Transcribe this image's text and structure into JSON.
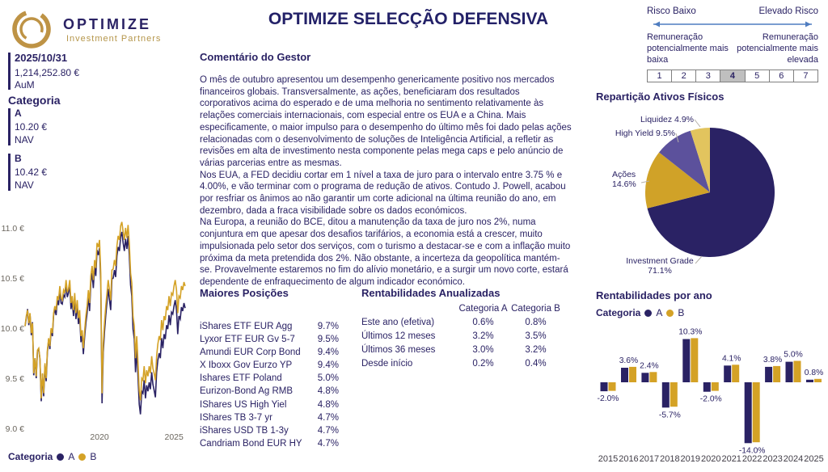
{
  "header": {
    "logo_text": "OPTIMIZE",
    "logo_subtext": "Investment Partners",
    "title": "OPTIMIZE SELECÇÃO DEFENSIVA"
  },
  "kpis": {
    "date": "2025/10/31",
    "aum_value": "1,214,252.80 €",
    "aum_label": "AuM",
    "category_label": "Categoria",
    "categories": [
      {
        "name": "A",
        "nav": "10.20 €",
        "nav_label": "NAV"
      },
      {
        "name": "B",
        "nav": "10.42 €",
        "nav_label": "NAV"
      }
    ]
  },
  "legend": {
    "title": "Categoria",
    "a": "A",
    "b": "B"
  },
  "commentary": {
    "heading": "Comentário do Gestor",
    "paragraphs": [
      "O mês de outubro apresentou um desempenho genericamente positivo nos mercados financeiros globais. Transversalmente, as ações, beneficiaram dos resultados corporativos acima do esperado e de uma melhoria no sentimento relativamente às relações comerciais internacionais, com especial entre os EUA e a China. Mais especificamente, o maior impulso para o desempenho do último mês foi dado pelas ações relacionadas com o desenvolvimento de soluções de Inteligência Artificial, a refletir as revisões em alta de investimento nesta componente pelas mega caps e pelo anúncio de várias parcerias entre as mesmas.",
      "Nos EUA, a FED decidiu cortar em 1 nível a taxa de juro para o intervalo entre 3.75 % e 4.00%, e vão terminar com o programa de redução de ativos. Contudo J. Powell, acabou por resfriar os ânimos ao não garantir um corte adicional na última reunião do ano, em dezembro, dada a fraca visibilidade sobre os dados económicos.",
      "Na Europa, a reunião do BCE, ditou a manutenção da taxa de juro nos 2%, numa conjuntura em que apesar dos desafios tarifários, a economia está a crescer, muito impulsionada pelo setor dos serviços, com o turismo a destacar-se e com a inflação muito próxima da meta pretendida dos 2%. Não obstante, a incerteza da geopolítica mantém-se. Provavelmente estaremos no fim do alívio monetário, e a surgir um novo corte, estará dependente de enfraquecimento de algum indicador económico."
    ]
  },
  "holdings": {
    "heading": "Maiores Posições",
    "rows": [
      {
        "name": "iShares ETF EUR Agg",
        "pct": "9.7%"
      },
      {
        "name": "Lyxor ETF EUR Gv 5-7",
        "pct": "9.5%"
      },
      {
        "name": "Amundi EUR Corp Bond",
        "pct": "9.4%"
      },
      {
        "name": "X Iboxx Gov Eurzo YP",
        "pct": "9.4%"
      },
      {
        "name": "Ishares ETF Poland",
        "pct": "5.0%"
      },
      {
        "name": "Eurizon-Bond Ag RMB",
        "pct": "4.8%"
      },
      {
        "name": "IShares US High Yiel",
        "pct": "4.8%"
      },
      {
        "name": "IShares TB 3-7 yr",
        "pct": "4.7%"
      },
      {
        "name": "iShares USD TB 1-3y",
        "pct": "4.7%"
      },
      {
        "name": "Candriam Bond EUR HY",
        "pct": "4.7%"
      }
    ]
  },
  "annualized": {
    "heading": "Rentabilidades Anualizadas",
    "col_a": "Categoria A",
    "col_b": "Categoria B",
    "rows": [
      {
        "label": "Este ano (efetiva)",
        "a": "0.6%",
        "b": "0.8%"
      },
      {
        "label": "Últimos 12 meses",
        "a": "3.2%",
        "b": "3.5%"
      },
      {
        "label": "Últimos 36 meses",
        "a": "3.0%",
        "b": "3.2%"
      },
      {
        "label": "Desde início",
        "a": "0.2%",
        "b": "0.4%"
      }
    ]
  },
  "risk": {
    "low_label": "Risco Baixo",
    "high_label": "Elevado Risco",
    "left_note": "Remuneração potencialmente mais baixa",
    "right_note": "Remuneração potencialmente mais elevada",
    "levels": [
      "1",
      "2",
      "3",
      "4",
      "5",
      "6",
      "7"
    ],
    "selected": "4"
  },
  "colors": {
    "navy": "#2a2264",
    "gold": "#d4a226",
    "purple": "#5c519c",
    "light_gold": "#e2c45e",
    "arrow_blue": "#4f7dc0",
    "leader_gray": "#b5b0a8"
  },
  "chart_data": [
    {
      "type": "line",
      "title": "NAV evolution",
      "x_start": "2015-01",
      "x_end": "2025-10",
      "ylabel": "€",
      "ylim": [
        9.0,
        11.1
      ],
      "y_ticks": [
        {
          "v": 11.0,
          "label": "11.0 €"
        },
        {
          "v": 10.5,
          "label": "10.5 €"
        },
        {
          "v": 10.0,
          "label": "10.0 €"
        },
        {
          "v": 9.5,
          "label": "9.5 €"
        },
        {
          "v": 9.0,
          "label": "9.0 €"
        }
      ],
      "x_ticks": [
        {
          "i": 60,
          "label": "2020"
        },
        {
          "i": 120,
          "label": "2025"
        }
      ],
      "series": [
        {
          "name": "A",
          "values": [
            10.02,
            10.1,
            10.19,
            10.03,
            10.14,
            9.93,
            10.06,
            9.53,
            9.7,
            9.5,
            9.77,
            9.79,
            9.69,
            9.27,
            9.54,
            9.32,
            9.63,
            9.47,
            9.76,
            9.89,
            9.79,
            9.98,
            9.92,
            10.13,
            10.19,
            10.13,
            10.28,
            10.23,
            10.38,
            10.25,
            10.24,
            10.33,
            10.31,
            10.44,
            10.31,
            10.35,
            10.43,
            10.19,
            10.27,
            10.12,
            10.3,
            10.09,
            10.23,
            10.04,
            10.13,
            9.86,
            9.93,
            9.74,
            9.92,
            10.05,
            10.15,
            10.32,
            10.17,
            10.45,
            10.55,
            10.4,
            10.61,
            10.52,
            10.78,
            10.73,
            10.8,
            10.46,
            9.25,
            9.76,
            9.96,
            10.13,
            10.26,
            10.39,
            10.28,
            10.18,
            10.49,
            10.5,
            10.58,
            10.51,
            10.72,
            10.81,
            10.77,
            10.91,
            10.96,
            10.85,
            10.77,
            10.89,
            10.79,
            10.92,
            10.73,
            10.43,
            10.32,
            9.99,
            9.89,
            9.56,
            9.79,
            9.51,
            9.24,
            9.14,
            9.37,
            9.35,
            9.48,
            9.3,
            9.43,
            9.37,
            9.46,
            9.39,
            9.56,
            9.44,
            9.38,
            9.31,
            9.56,
            9.68,
            9.75,
            9.7,
            9.9,
            9.8,
            9.94,
            9.89,
            10.03,
            9.99,
            10.13,
            10.03,
            10.16,
            10.14,
            10.22,
            10.28,
            10.18,
            9.94,
            10.12,
            10.09,
            10.21,
            10.17,
            10.25,
            10.2
          ]
        },
        {
          "name": "B",
          "values": [
            10.02,
            10.12,
            10.18,
            10.05,
            10.15,
            9.95,
            10.05,
            9.55,
            9.7,
            9.52,
            9.78,
            9.8,
            9.7,
            9.3,
            9.55,
            9.35,
            9.65,
            9.5,
            9.78,
            9.9,
            9.82,
            10.0,
            9.95,
            10.15,
            10.22,
            10.18,
            10.32,
            10.28,
            10.42,
            10.3,
            10.28,
            10.38,
            10.35,
            10.48,
            10.36,
            10.39,
            10.48,
            10.25,
            10.32,
            10.18,
            10.35,
            10.15,
            10.28,
            10.1,
            10.18,
            9.92,
            9.98,
            9.8,
            9.98,
            10.12,
            10.22,
            10.38,
            10.25,
            10.52,
            10.62,
            10.48,
            10.68,
            10.6,
            10.85,
            10.81,
            10.88,
            10.55,
            9.35,
            9.85,
            10.05,
            10.22,
            10.35,
            10.48,
            10.38,
            10.28,
            10.58,
            10.59,
            10.68,
            10.62,
            10.82,
            10.92,
            10.88,
            11.02,
            11.06,
            10.96,
            10.88,
            11.0,
            10.9,
            11.03,
            10.85,
            10.55,
            10.45,
            10.12,
            10.02,
            9.7,
            9.92,
            9.65,
            9.38,
            9.28,
            9.5,
            9.48,
            9.62,
            9.45,
            9.58,
            9.52,
            9.62,
            9.55,
            9.72,
            9.6,
            9.55,
            9.48,
            9.72,
            9.84,
            9.92,
            9.88,
            10.08,
            9.98,
            10.12,
            10.08,
            10.22,
            10.18,
            10.32,
            10.22,
            10.35,
            10.33,
            10.42,
            10.48,
            10.38,
            10.15,
            10.32,
            10.3,
            10.42,
            10.38,
            10.46,
            10.42
          ]
        }
      ]
    },
    {
      "type": "pie",
      "title": "Repartição Ativos Físicos",
      "slices": [
        {
          "label": "Investment Grade",
          "pct_label": "71.1%",
          "value": 71.1,
          "color": "#2a2264"
        },
        {
          "label": "Ações",
          "pct_label": "14.6%",
          "value": 14.6,
          "color": "#d0a228"
        },
        {
          "label": "High Yield",
          "pct_label": "9.5%",
          "value": 9.5,
          "color": "#5c519c"
        },
        {
          "label": "Liquidez",
          "pct_label": "4.9%",
          "value": 4.9,
          "color": "#e2c45e"
        }
      ]
    },
    {
      "type": "bar",
      "title": "Rentabilidades por ano",
      "categories": [
        "2015",
        "2016",
        "2017",
        "2018",
        "2019",
        "2020",
        "2021",
        "2022",
        "2023",
        "2024",
        "2025"
      ],
      "series": [
        {
          "name": "A",
          "values": [
            -2.1,
            3.4,
            2.2,
            -5.9,
            10.1,
            -2.2,
            3.9,
            -14.2,
            3.6,
            4.8,
            0.6
          ]
        },
        {
          "name": "B",
          "values": [
            -2.0,
            3.6,
            2.4,
            -5.7,
            10.3,
            -2.0,
            4.1,
            -14.0,
            3.8,
            5.0,
            0.8
          ]
        }
      ],
      "labels": [
        "-2.0%",
        "3.6%",
        "2.4%",
        "-5.7%",
        "10.3%",
        "-2.0%",
        "4.1%",
        "-14.0%",
        "3.8%",
        "5.0%",
        "0.8%"
      ],
      "ylim": [
        -15,
        11
      ],
      "legend_position": "top"
    }
  ]
}
